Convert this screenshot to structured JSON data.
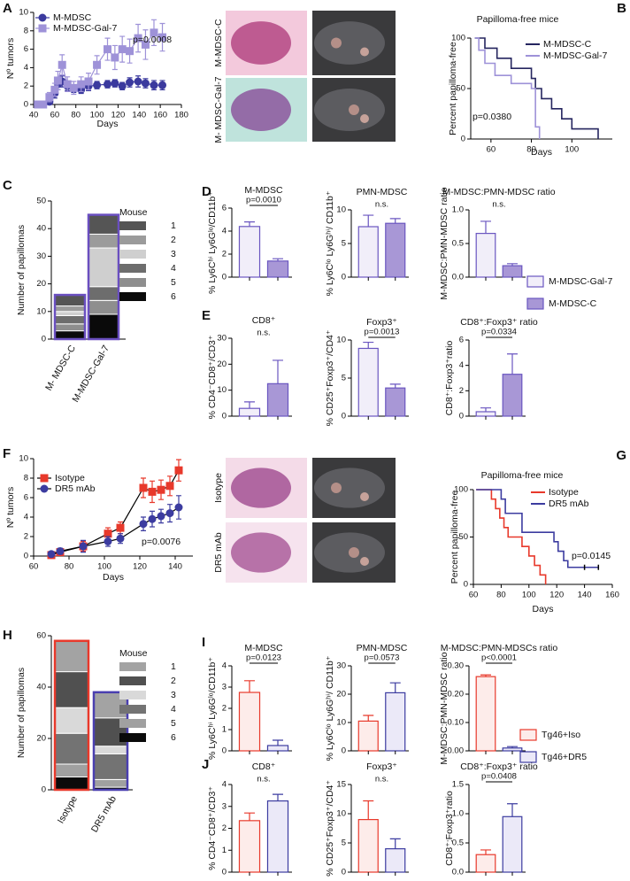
{
  "chart_data": [
    {
      "type": "line",
      "panel": "A",
      "xlabel": "Days",
      "ylabel": "Nº tumors",
      "annotation": "p=0.0008",
      "xlim": [
        40,
        180
      ],
      "xticks": [
        40,
        60,
        80,
        100,
        120,
        140,
        160,
        180
      ],
      "ylim": [
        0,
        10
      ],
      "yticks": [
        0,
        2,
        4,
        6,
        8,
        10
      ],
      "series": [
        {
          "name": "M-MDSC",
          "color": "#3b3a9e",
          "line_color": "#3b3a9e",
          "marker": "circle",
          "x": [
            44,
            49,
            55,
            60,
            63,
            67,
            72,
            78,
            85,
            92,
            100,
            110,
            117,
            124,
            131,
            139,
            146,
            154,
            162
          ],
          "values": [
            0,
            0,
            0.3,
            1.2,
            2.2,
            2.5,
            2,
            1.7,
            1.6,
            2,
            2.1,
            2.2,
            2.3,
            2,
            2.4,
            2.5,
            2.3,
            2.1,
            2.1
          ],
          "errors": [
            0,
            0,
            0.3,
            0.5,
            0.6,
            0.6,
            0.5,
            0.4,
            0.4,
            0.5,
            0.4,
            0.4,
            0.4,
            0.4,
            0.5,
            0.6,
            0.5,
            0.5,
            0.5
          ]
        },
        {
          "name": "M-MDSC-Gal-7",
          "color": "#9e92d8",
          "line_color": "#9e92d8",
          "marker": "square",
          "x": [
            44,
            49,
            55,
            60,
            63,
            67,
            72,
            78,
            85,
            92,
            100,
            110,
            117,
            124,
            131,
            139,
            146,
            154,
            162
          ],
          "values": [
            0,
            0,
            0.8,
            1.6,
            2.6,
            4.3,
            2.2,
            1.8,
            2.2,
            2.5,
            4.3,
            6,
            5.1,
            6,
            5.8,
            7.2,
            6.5,
            7.8,
            7.3
          ],
          "errors": [
            0,
            0,
            0.5,
            0.7,
            1,
            1.1,
            0.8,
            0.7,
            0.8,
            0.9,
            1,
            1.2,
            1.3,
            1.4,
            1.3,
            1.5,
            1.6,
            1.4,
            1.5
          ]
        }
      ]
    },
    {
      "type": "survival",
      "panel": "B",
      "title": "Papilloma-free mice",
      "xlabel": "Days",
      "ylabel": "Percent  papilloma-free",
      "annotation": "p=0.0380",
      "xlim": [
        50,
        120
      ],
      "xticks": [
        60,
        80,
        100
      ],
      "ylim": [
        0,
        100
      ],
      "yticks": [
        0,
        50,
        100
      ],
      "series": [
        {
          "name": "M-MDSC-C",
          "color": "#25255f",
          "x": [
            52,
            57,
            63,
            70,
            80,
            82,
            85,
            90,
            95,
            100,
            113
          ],
          "y": [
            100,
            90,
            80,
            70,
            60,
            50,
            40,
            30,
            20,
            10,
            0
          ]
        },
        {
          "name": "M-MDSC-Gal-7",
          "color": "#9e92d8",
          "x": [
            52,
            54,
            57,
            62,
            70,
            80,
            82,
            84
          ],
          "y": [
            100,
            88,
            75,
            63,
            55,
            50,
            12,
            0
          ]
        }
      ]
    },
    {
      "type": "stacked-bar",
      "panel": "C",
      "ylabel": "Number of papillomas",
      "legend_title": "Mouse",
      "categories": [
        "M- MDSC-C",
        "M-MDSC-Gal-7"
      ],
      "edgecolors": [
        "#6a4fc0",
        "#6a4fc0"
      ],
      "ylim": [
        0,
        50
      ],
      "yticks": [
        0,
        10,
        20,
        30,
        40,
        50
      ],
      "series": [
        {
          "name": "1",
          "color": "#555555",
          "values": [
            4,
            7
          ]
        },
        {
          "name": "2",
          "color": "#9b9b9b",
          "values": [
            2,
            5
          ]
        },
        {
          "name": "3",
          "color": "#cfcfcf",
          "values": [
            1.5,
            14
          ]
        },
        {
          "name": "4",
          "color": "#6d6d6d",
          "values": [
            3,
            5
          ]
        },
        {
          "name": "5",
          "color": "#8e8e8e",
          "values": [
            2.5,
            5
          ]
        },
        {
          "name": "6",
          "color": "#0a0a0a",
          "values": [
            3,
            9
          ]
        }
      ]
    },
    {
      "type": "bar",
      "panel": "D",
      "title": "M-MDSC",
      "ylabel": "% Ly6Cʰⁱ Ly6Gˡᵒ/CD11b⁺",
      "annotation": "p=0.0010",
      "bracket": true,
      "values": [
        4.4,
        1.4
      ],
      "errors": [
        0.4,
        0.2
      ],
      "colors": [
        "#f1eef9",
        "#a897d6"
      ],
      "edgecolors": [
        "#6a56c0",
        "#6a56c0"
      ],
      "ylim": [
        0,
        6
      ],
      "yticks": [
        0,
        2,
        4,
        6
      ]
    },
    {
      "type": "bar",
      "title": "PMN-MDSC",
      "ylabel": "% Ly6Cˡᵒ Ly6Gʰⁱ/ CD11b⁺",
      "annotation": "n.s.",
      "bracket": false,
      "values": [
        7.5,
        8
      ],
      "errors": [
        1.7,
        0.7
      ],
      "colors": [
        "#f1eef9",
        "#a897d6"
      ],
      "edgecolors": [
        "#6a56c0",
        "#6a56c0"
      ],
      "ylim": [
        0,
        10
      ],
      "yticks": [
        0,
        5,
        10
      ]
    },
    {
      "type": "bar",
      "title": "M-MDSC:PMN-MDSC ratio",
      "ylabel": "M-MDSC:PMN-MDSC ratio",
      "annotation": "n.s.",
      "bracket": false,
      "values": [
        0.65,
        0.17
      ],
      "errors": [
        0.18,
        0.03
      ],
      "colors": [
        "#f1eef9",
        "#a897d6"
      ],
      "edgecolors": [
        "#6a56c0",
        "#6a56c0"
      ],
      "ylim": [
        0,
        1
      ],
      "yticks": [
        {
          "value": 0,
          "label": "0.0"
        },
        0.5,
        {
          "value": 1,
          "label": "1.0"
        }
      ]
    },
    {
      "type": "legend",
      "entries": [
        {
          "name": "M-MDSC-Gal-7",
          "color": "#f1eef9",
          "edgecolor": "#6a56c0"
        },
        {
          "name": "M-MDSC-C",
          "color": "#a897d6",
          "edgecolor": "#6a56c0"
        }
      ]
    },
    {
      "type": "bar",
      "panel": "E",
      "title": "CD8⁺",
      "ylabel": "% CD4⁻CD8⁺/CD3⁺",
      "annotation": "n.s.",
      "bracket": false,
      "values": [
        3,
        12.5
      ],
      "errors": [
        2.5,
        9
      ],
      "colors": [
        "#f1eef9",
        "#a897d6"
      ],
      "edgecolors": [
        "#6a56c0",
        "#6a56c0"
      ],
      "ylim": [
        0,
        30
      ],
      "yticks": [
        0,
        10,
        20,
        30
      ]
    },
    {
      "type": "bar",
      "title": "Foxp3⁺",
      "ylabel": "% CD25⁺Foxp3⁺/CD4⁺",
      "annotation": "p=0.0013",
      "bracket": true,
      "values": [
        8.9,
        3.7
      ],
      "errors": [
        0.8,
        0.5
      ],
      "colors": [
        "#f1eef9",
        "#a897d6"
      ],
      "edgecolors": [
        "#6a56c0",
        "#6a56c0"
      ],
      "ylim": [
        0,
        10
      ],
      "yticks": [
        0,
        5,
        10
      ]
    },
    {
      "type": "bar",
      "title": "CD8⁺:Foxp3⁺ ratio",
      "ylabel": "CD8⁺:Foxp3⁺ratio",
      "annotation": "p=0.0334",
      "bracket": true,
      "values": [
        0.35,
        3.3
      ],
      "errors": [
        0.3,
        1.6
      ],
      "colors": [
        "#f1eef9",
        "#a897d6"
      ],
      "edgecolors": [
        "#6a56c0",
        "#6a56c0"
      ],
      "ylim": [
        0,
        6
      ],
      "yticks": [
        0,
        2,
        4,
        6
      ]
    },
    {
      "type": "line",
      "panel": "F",
      "xlabel": "Days",
      "ylabel": "Nº tumors",
      "annotation": "p=0.0076",
      "xlim": [
        60,
        150
      ],
      "xticks": [
        60,
        80,
        100,
        120,
        140
      ],
      "ylim": [
        0,
        10
      ],
      "yticks": [
        0,
        2,
        4,
        6,
        8,
        10
      ],
      "series": [
        {
          "name": "Isotype",
          "color": "#e8392b",
          "line_color": "#000000",
          "marker": "square",
          "x": [
            70,
            75,
            88,
            102,
            109,
            122,
            127,
            132,
            137,
            142
          ],
          "values": [
            0.1,
            0.4,
            1,
            2.3,
            2.9,
            7,
            6.6,
            6.8,
            7.2,
            8.8
          ],
          "errors": [
            0.1,
            0.3,
            0.5,
            0.6,
            0.6,
            1,
            1.1,
            1,
            1,
            1.1
          ]
        },
        {
          "name": "DR5 mAb",
          "color": "#3c3ca0",
          "line_color": "#000000",
          "marker": "circle",
          "x": [
            70,
            75,
            88,
            102,
            109,
            122,
            127,
            132,
            137,
            142
          ],
          "values": [
            0.2,
            0.5,
            1,
            1.5,
            1.8,
            3.3,
            3.8,
            4.1,
            4.4,
            5
          ],
          "errors": [
            0.2,
            0.3,
            0.6,
            0.5,
            0.5,
            0.7,
            0.8,
            0.7,
            0.9,
            1.2
          ]
        }
      ]
    },
    {
      "type": "survival",
      "panel": "G",
      "title": "Papilloma-free mice",
      "xlabel": "Days",
      "ylabel": "Percent papilloma-free",
      "annotation": "p=0.0145",
      "xlim": [
        60,
        160
      ],
      "xticks": [
        60,
        80,
        100,
        120,
        140,
        160
      ],
      "ylim": [
        0,
        100
      ],
      "yticks": [
        0,
        50,
        100
      ],
      "series": [
        {
          "name": "Isotype",
          "color": "#e8392b",
          "x": [
            62,
            73,
            76,
            79,
            82,
            85,
            95,
            100,
            104,
            108,
            112
          ],
          "y": [
            100,
            90,
            80,
            70,
            60,
            50,
            40,
            30,
            20,
            10,
            0
          ]
        },
        {
          "name": "DR5 mAb",
          "color": "#3c3ca0",
          "x": [
            62,
            80,
            83,
            95,
            118,
            121,
            125,
            128,
            150
          ],
          "y": [
            100,
            90,
            75,
            55,
            45,
            35,
            25,
            18,
            18
          ],
          "censored": [
            140,
            150
          ]
        }
      ]
    },
    {
      "type": "stacked-bar",
      "panel": "H",
      "ylabel": "Number of papillomas",
      "legend_title": "Mouse",
      "categories": [
        "Isotype",
        "DR5 mAb"
      ],
      "edgecolors": [
        "#e8392b",
        "#4a3fb0"
      ],
      "ylim": [
        0,
        60
      ],
      "yticks": [
        0,
        20,
        40,
        60
      ],
      "series": [
        {
          "name": "1",
          "color": "#a3a3a3",
          "values": [
            12,
            10
          ]
        },
        {
          "name": "2",
          "color": "#505050",
          "values": [
            14,
            11
          ]
        },
        {
          "name": "3",
          "color": "#d9d9d9",
          "values": [
            10,
            3
          ]
        },
        {
          "name": "4",
          "color": "#737373",
          "values": [
            12,
            10
          ]
        },
        {
          "name": "5",
          "color": "#a0a0a0",
          "values": [
            5,
            3
          ]
        },
        {
          "name": "6",
          "color": "#0a0a0a",
          "values": [
            5,
            1
          ]
        }
      ]
    },
    {
      "type": "bar",
      "panel": "I",
      "title": "M-MDSC",
      "ylabel": "% Ly6Cʰⁱ Ly6Gˡᵒ/CD11b⁺",
      "annotation": "p=0.0123",
      "bracket": true,
      "values": [
        2.75,
        0.25
      ],
      "errors": [
        0.55,
        0.25
      ],
      "colors": [
        "#fdecea",
        "#ebe9f8"
      ],
      "edgecolors": [
        "#e8392b",
        "#3c3ca0"
      ],
      "ylim": [
        0,
        4
      ],
      "yticks": [
        0,
        1,
        2,
        3,
        4
      ]
    },
    {
      "type": "bar",
      "title": "PMN-MDSC",
      "ylabel": "% Ly6Cˡᵒ Ly6Gʰⁱ/ CD11b⁺",
      "annotation": "p=0.0573",
      "bracket": true,
      "values": [
        10.5,
        20.5
      ],
      "errors": [
        2,
        3.5
      ],
      "colors": [
        "#fdecea",
        "#ebe9f8"
      ],
      "edgecolors": [
        "#e8392b",
        "#3c3ca0"
      ],
      "ylim": [
        0,
        30
      ],
      "yticks": [
        0,
        10,
        20,
        30
      ]
    },
    {
      "type": "bar",
      "title": "M-MDSC:PMN-MDSCs ratio",
      "ylabel": "M-MDSC:PMN-MDSC ratio",
      "annotation": "p<0.0001",
      "bracket": true,
      "values": [
        0.262,
        0.01
      ],
      "errors": [
        0.006,
        0.005
      ],
      "colors": [
        "#fdecea",
        "#ebe9f8"
      ],
      "edgecolors": [
        "#e8392b",
        "#3c3ca0"
      ],
      "ylim": [
        0,
        0.3
      ],
      "yticks": [
        {
          "value": 0,
          "label": "0.00"
        },
        {
          "value": 0.1,
          "label": "0.10"
        },
        {
          "value": 0.2,
          "label": "0.20"
        },
        {
          "value": 0.3,
          "label": "0.30"
        }
      ]
    },
    {
      "type": "legend",
      "entries": [
        {
          "name": "Tg46+Iso",
          "color": "#fdecea",
          "edgecolor": "#e8392b"
        },
        {
          "name": "Tg46+DR5",
          "color": "#ebe9f8",
          "edgecolor": "#3c3ca0"
        }
      ]
    },
    {
      "type": "bar",
      "panel": "J",
      "title": "CD8⁺",
      "ylabel": "% CD4⁻CD8⁺/CD3⁺",
      "annotation": "n.s.",
      "bracket": false,
      "values": [
        2.35,
        3.25
      ],
      "errors": [
        0.35,
        0.3
      ],
      "colors": [
        "#fdecea",
        "#ebe9f8"
      ],
      "edgecolors": [
        "#e8392b",
        "#3c3ca0"
      ],
      "ylim": [
        0,
        4
      ],
      "yticks": [
        0,
        1,
        2,
        3,
        4
      ]
    },
    {
      "type": "bar",
      "title": "Foxp3⁺",
      "ylabel": "% CD25⁺Foxp3⁺/CD4⁺",
      "annotation": "n.s.",
      "bracket": false,
      "values": [
        9,
        4
      ],
      "errors": [
        3.2,
        1.7
      ],
      "colors": [
        "#fdecea",
        "#ebe9f8"
      ],
      "edgecolors": [
        "#e8392b",
        "#3c3ca0"
      ],
      "ylim": [
        0,
        15
      ],
      "yticks": [
        0,
        5,
        10,
        15
      ]
    },
    {
      "type": "bar",
      "title": "CD8⁺:Foxp3⁺ ratio",
      "ylabel": "CD8⁺:Foxp3⁺ratio",
      "annotation": "p=0.0408",
      "bracket": true,
      "values": [
        0.3,
        0.95
      ],
      "errors": [
        0.08,
        0.22
      ],
      "colors": [
        "#fdecea",
        "#ebe9f8"
      ],
      "edgecolors": [
        "#e8392b",
        "#3c3ca0"
      ],
      "ylim": [
        0,
        1.5
      ],
      "yticks": [
        {
          "value": 0,
          "label": "0.0"
        },
        0.5,
        {
          "value": 1,
          "label": "1.0"
        },
        1.5
      ]
    }
  ],
  "photos": [
    {
      "label": "M-MDSC-C"
    },
    {
      "label": "M- MDSC-Gal-7"
    },
    {
      "label": "Isotype"
    },
    {
      "label": "DR5 mAb"
    }
  ]
}
